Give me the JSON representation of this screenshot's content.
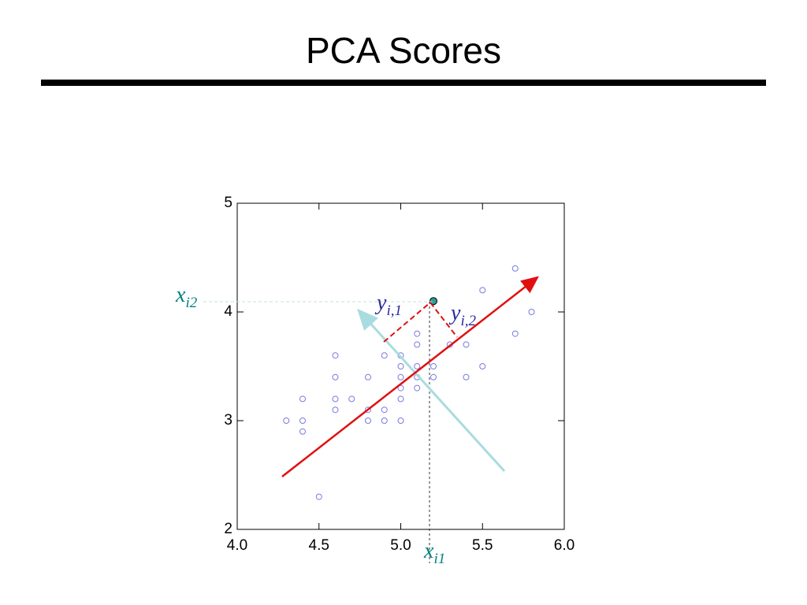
{
  "chart_data": {
    "type": "scatter",
    "title": "PCA Scores",
    "xlim": [
      4.0,
      6.0
    ],
    "ylim": [
      2,
      5
    ],
    "xticks": [
      {
        "value": 4.0,
        "label": "4.0"
      },
      {
        "value": 4.5,
        "label": "4.5"
      },
      {
        "value": 5.0,
        "label": "5.0"
      },
      {
        "value": 5.5,
        "label": "5.5"
      },
      {
        "value": 6.0,
        "label": "6.0"
      }
    ],
    "yticks": [
      2,
      3,
      4,
      5
    ],
    "series": [
      {
        "color": "#7a7ae0",
        "x": [
          4.3,
          4.4,
          4.4,
          4.4,
          4.5,
          4.6,
          4.6,
          4.6,
          4.6,
          4.7,
          4.8,
          4.8,
          4.8,
          4.9,
          4.9,
          4.9,
          5.0,
          5.0,
          5.0,
          5.0,
          5.0,
          5.0,
          5.1,
          5.1,
          5.1,
          5.1,
          5.1,
          5.2,
          5.2,
          5.3,
          5.4,
          5.4,
          5.5,
          5.5,
          5.7,
          5.7,
          5.8
        ],
        "values": [
          3.0,
          3.2,
          3.0,
          2.9,
          2.3,
          3.6,
          3.4,
          3.2,
          3.1,
          3.2,
          3.4,
          3.1,
          3.0,
          3.6,
          3.1,
          3.0,
          3.6,
          3.5,
          3.4,
          3.3,
          3.2,
          3.0,
          3.8,
          3.7,
          3.5,
          3.4,
          3.3,
          3.5,
          3.4,
          3.7,
          3.7,
          3.4,
          4.2,
          3.5,
          4.4,
          3.8,
          4.0
        ]
      },
      {
        "color": "#2a9d8f",
        "x": [
          5.2
        ],
        "values": [
          4.1
        ]
      }
    ],
    "annotations": [
      {
        "text": "x",
        "subscript": "i2",
        "color": "#008080"
      },
      {
        "text": "y",
        "subscript": "i,1",
        "color": "#2a2aa0"
      },
      {
        "text": "y",
        "subscript": "i,2",
        "color": "#2a2aa0"
      },
      {
        "text": "x",
        "subscript": "i1",
        "color": "#008080"
      }
    ]
  }
}
